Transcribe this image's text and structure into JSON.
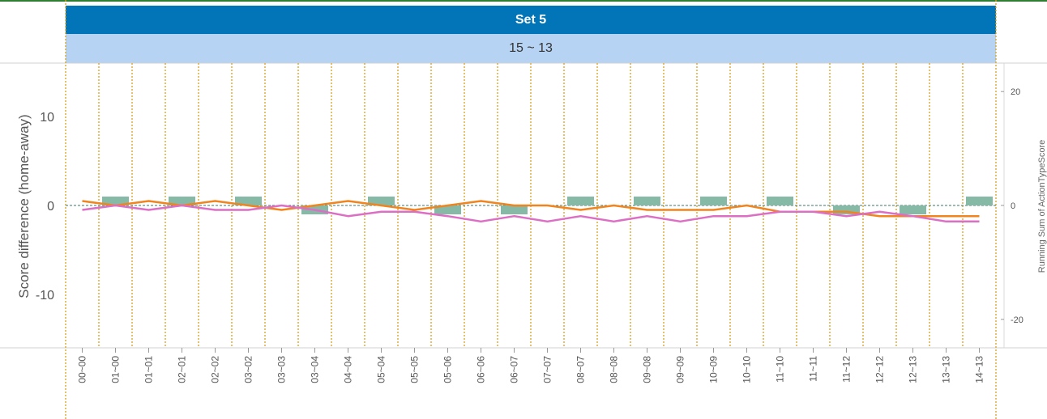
{
  "set_header": {
    "title": "Set 5",
    "score": "15 ~ 13"
  },
  "colors": {
    "header": "#0275b8",
    "subheader": "#b7d3f3",
    "bar": "#86b9a6",
    "orange_line": "#f0841e",
    "pink_line": "#dc6fc4",
    "guide": "#d6a21c"
  },
  "chart_data": {
    "type": "bar",
    "categories": [
      "00~00",
      "01~00",
      "01~01",
      "02~01",
      "02~02",
      "03~02",
      "03~03",
      "03~04",
      "04~04",
      "05~04",
      "05~05",
      "05~06",
      "06~06",
      "06~07",
      "07~07",
      "08~07",
      "08~08",
      "09~08",
      "09~09",
      "10~09",
      "10~10",
      "11~10",
      "11~11",
      "11~12",
      "12~12",
      "12~13",
      "13~13",
      "14~13"
    ],
    "ylabel": "Score difference (home-away)",
    "y2label": "Running Sum of ActionTypeScore",
    "ylim": [
      -16,
      16
    ],
    "y2lim": [
      -25,
      25
    ],
    "yticks": [
      10,
      0,
      -10
    ],
    "y2ticks": [
      20,
      0,
      -20
    ],
    "bars": [
      0,
      1,
      0,
      1,
      0,
      1,
      0,
      -1,
      0,
      1,
      0,
      -1,
      0,
      -1,
      0,
      1,
      0,
      1,
      0,
      1,
      0,
      1,
      0,
      -1,
      0,
      -1,
      0,
      1
    ],
    "series": [
      {
        "values": [
          0.5,
          0,
          0.5,
          0,
          0.5,
          0,
          -0.5,
          0,
          0.5,
          0,
          -0.5,
          0,
          0.5,
          0,
          0,
          -0.5,
          0,
          -0.5,
          -0.5,
          -0.5,
          0,
          -0.7,
          -0.7,
          -0.7,
          -1.2,
          -1.2,
          -1.2,
          -1.2
        ]
      },
      {
        "values": [
          -0.5,
          0,
          -0.5,
          0,
          -0.5,
          -0.5,
          0,
          -0.5,
          -1.2,
          -0.7,
          -0.7,
          -1.2,
          -1.8,
          -1.2,
          -1.8,
          -1.2,
          -1.8,
          -1.2,
          -1.8,
          -1.2,
          -1.2,
          -0.7,
          -0.7,
          -1.2,
          -0.7,
          -1.2,
          -1.8,
          -1.8
        ]
      }
    ]
  }
}
